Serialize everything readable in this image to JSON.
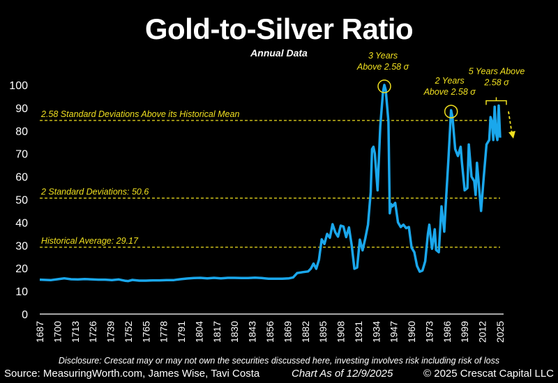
{
  "chart_data": {
    "type": "line",
    "title": "Gold-to-Silver Ratio",
    "subtitle": "Annual Data",
    "ylim": [
      0,
      100
    ],
    "yticks": [
      0,
      10,
      20,
      30,
      40,
      50,
      60,
      70,
      80,
      90,
      100
    ],
    "xlim": [
      1687,
      2025
    ],
    "xticks": [
      1687,
      1700,
      1713,
      1726,
      1739,
      1752,
      1765,
      1778,
      1791,
      1804,
      1817,
      1830,
      1843,
      1856,
      1869,
      1882,
      1895,
      1908,
      1921,
      1934,
      1947,
      1960,
      1973,
      1986,
      1999,
      2012,
      2025
    ],
    "grid": false,
    "series_color": "#1aa7ec",
    "reference_color": "#f0e020",
    "series": [
      {
        "x": [
          1687,
          1695,
          1700,
          1705,
          1710,
          1715,
          1720,
          1726,
          1730,
          1735,
          1740,
          1745,
          1750,
          1752,
          1755,
          1760,
          1765,
          1770,
          1775,
          1780,
          1785,
          1790,
          1795,
          1800,
          1805,
          1810,
          1815,
          1820,
          1825,
          1830,
          1835,
          1840,
          1845,
          1850,
          1855,
          1860,
          1865,
          1870,
          1873,
          1876,
          1880,
          1884,
          1886,
          1888,
          1890,
          1892,
          1894,
          1896,
          1898,
          1900,
          1902,
          1904,
          1906,
          1908,
          1910,
          1912,
          1914,
          1916,
          1918,
          1920,
          1922,
          1924,
          1926,
          1928,
          1930,
          1931,
          1932,
          1933,
          1935,
          1937,
          1939,
          1940,
          1941,
          1943,
          1944,
          1945,
          1946,
          1948,
          1950,
          1952,
          1954,
          1956,
          1958,
          1960,
          1962,
          1964,
          1966,
          1968,
          1970,
          1972,
          1973,
          1975,
          1977,
          1978,
          1980,
          1982,
          1984,
          1985,
          1987,
          1989,
          1990,
          1992,
          1994,
          1996,
          1997,
          1999,
          2001,
          2002,
          2004,
          2006,
          2007,
          2008,
          2009,
          2011,
          2013,
          2015,
          2017,
          2018,
          2019,
          2020,
          2021,
          2022,
          2023,
          2024,
          2025
        ],
        "y": [
          15,
          14.8,
          15.2,
          15.6,
          15.2,
          15.1,
          15.3,
          15.1,
          15.0,
          15.0,
          14.8,
          15.1,
          14.5,
          14.4,
          14.9,
          14.6,
          14.6,
          14.7,
          14.7,
          14.8,
          14.8,
          15.2,
          15.5,
          15.7,
          15.8,
          15.6,
          15.8,
          15.6,
          15.8,
          15.8,
          15.7,
          15.7,
          15.9,
          15.7,
          15.4,
          15.4,
          15.4,
          15.6,
          16.0,
          17.9,
          18.3,
          18.6,
          19.8,
          22.0,
          19.8,
          23.7,
          32.6,
          30.6,
          35.0,
          33.3,
          39.2,
          35.7,
          33.8,
          38.6,
          38.2,
          33.6,
          37.8,
          30.1,
          19.8,
          20.3,
          32.5,
          27.8,
          33.0,
          39.0,
          53.3,
          72.0,
          73.0,
          70.0,
          54.0,
          82.0,
          97.0,
          100,
          97.8,
          84.0,
          44.0,
          48.0,
          47.0,
          48.5,
          40.0,
          38.0,
          39.0,
          37.5,
          38.0,
          29.0,
          27.0,
          21.0,
          18.5,
          19.0,
          23.0,
          35.0,
          39.0,
          28.5,
          37.0,
          28.0,
          27.0,
          47.0,
          36.0,
          47.0,
          67.0,
          89.0,
          86.0,
          72.0,
          69.0,
          73.0,
          66.0,
          54.0,
          55.0,
          74.0,
          60.0,
          58.0,
          52.0,
          66.0,
          59.0,
          45.0,
          60.0,
          74.0,
          76.0,
          86.0,
          84.0,
          76.0,
          90.5,
          79.0,
          76.0,
          91.0,
          77.0
        ]
      }
    ],
    "reference_lines": [
      {
        "value": 84.5,
        "label": "2.58 Standard Deviations Above its Historical Mean"
      },
      {
        "value": 50.6,
        "label": "2 Standard Deviations: 50.6"
      },
      {
        "value": 29.17,
        "label": "Historical Average: 29.17"
      }
    ],
    "annotations": [
      {
        "line1": "3 Years",
        "line2": "Above 2.58 σ",
        "year": 1940,
        "value": 100,
        "marker": "circle"
      },
      {
        "line1": "2 Years",
        "line2": "Above 2.58 σ",
        "year": 1989,
        "value": 89,
        "marker": "circle"
      },
      {
        "line1": "5 Years Above",
        "line2": "2.58 σ",
        "year": 2022,
        "value": 91,
        "marker": "bracket"
      }
    ]
  },
  "footer": {
    "disclosure": "Disclosure: Crescat may or may not own the securities discussed here, investing involves risk including risk of loss",
    "source": "Source: MeasuringWorth.com, James Wise, Tavi Costa",
    "chart_as_of": "Chart As of 12/9/2025",
    "copyright": "© 2025 Crescat Capital LLC"
  }
}
